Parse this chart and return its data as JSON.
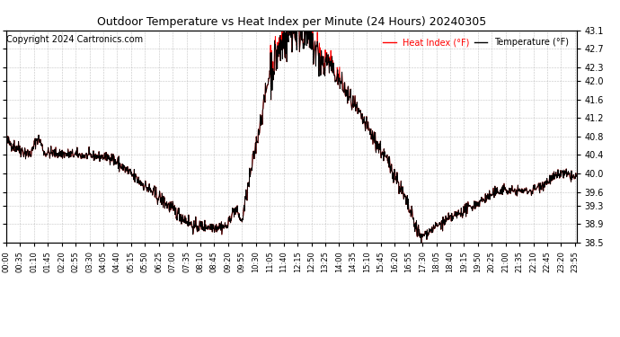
{
  "title": "Outdoor Temperature vs Heat Index per Minute (24 Hours) 20240305",
  "copyright": "Copyright 2024 Cartronics.com",
  "legend_heat": "Heat Index (°F)",
  "legend_temp": "Temperature (°F)",
  "heat_color": "red",
  "temp_color": "black",
  "background_color": "#ffffff",
  "grid_color": "#aaaaaa",
  "ylim": [
    38.5,
    43.1
  ],
  "yticks": [
    38.5,
    38.9,
    39.3,
    39.6,
    40.0,
    40.4,
    40.8,
    41.2,
    41.6,
    42.0,
    42.3,
    42.7,
    43.1
  ],
  "total_minutes": 1440,
  "x_tick_positions": [
    0,
    35,
    70,
    105,
    140,
    175,
    210,
    245,
    280,
    315,
    350,
    385,
    420,
    455,
    490,
    525,
    560,
    595,
    630,
    665,
    700,
    735,
    770,
    805,
    840,
    875,
    910,
    945,
    980,
    1015,
    1050,
    1085,
    1120,
    1155,
    1190,
    1225,
    1260,
    1295,
    1330,
    1365,
    1400,
    1435
  ],
  "x_tick_labels": [
    "00:00",
    "00:35",
    "01:10",
    "01:45",
    "02:20",
    "02:55",
    "03:30",
    "04:05",
    "04:40",
    "05:15",
    "05:50",
    "06:25",
    "07:00",
    "07:35",
    "08:10",
    "08:45",
    "09:20",
    "09:55",
    "10:30",
    "11:05",
    "11:40",
    "12:15",
    "12:50",
    "13:25",
    "14:00",
    "14:35",
    "15:10",
    "15:45",
    "16:20",
    "16:55",
    "17:30",
    "18:05",
    "18:40",
    "19:15",
    "19:50",
    "20:25",
    "21:00",
    "21:35",
    "22:10",
    "22:45",
    "23:20",
    "23:55"
  ]
}
